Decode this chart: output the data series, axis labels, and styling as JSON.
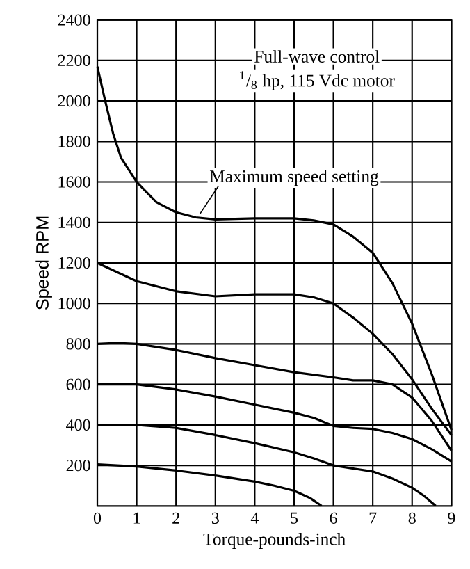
{
  "chart_data": {
    "type": "line",
    "xlabel": "Torque-pounds-inch",
    "ylabel": "Speed RPM",
    "annotations": [
      "Full-wave control",
      "$^{1}$/$_{8}$ hp, 115 Vdc motor",
      {
        "text": "Maximum speed setting",
        "x": 2.6,
        "y": 1440
      }
    ],
    "xlim": [
      0,
      9
    ],
    "ylim": [
      0,
      2400
    ],
    "xticks": [
      0,
      1,
      2,
      3,
      4,
      5,
      6,
      7,
      8,
      9
    ],
    "yticks": [
      200,
      400,
      600,
      800,
      1000,
      1200,
      1400,
      1600,
      1800,
      2000,
      2200,
      2400
    ],
    "grid": true,
    "marker": "none",
    "series": [
      {
        "color": "#000000",
        "x": [
          0,
          0.2,
          0.4,
          0.6,
          1,
          1.5,
          2,
          2.5,
          3,
          4,
          5,
          5.5,
          6,
          6.5,
          7,
          7.5,
          8,
          8.5,
          9
        ],
        "values": [
          2170,
          2000,
          1840,
          1720,
          1600,
          1500,
          1450,
          1425,
          1415,
          1420,
          1420,
          1410,
          1390,
          1330,
          1250,
          1100,
          900,
          650,
          375
        ]
      },
      {
        "color": "#000000",
        "x": [
          0,
          1,
          2,
          3,
          4,
          5,
          5.5,
          6,
          6.5,
          7,
          7.5,
          8,
          8.5,
          9
        ],
        "values": [
          1200,
          1110,
          1060,
          1035,
          1045,
          1045,
          1030,
          1000,
          930,
          850,
          750,
          625,
          480,
          350
        ]
      },
      {
        "color": "#000000",
        "x": [
          0,
          0.5,
          1,
          2,
          3,
          4,
          5,
          6,
          6.5,
          7,
          7.5,
          8,
          8.5,
          9
        ],
        "values": [
          800,
          805,
          800,
          770,
          730,
          695,
          660,
          635,
          620,
          620,
          600,
          535,
          420,
          273
        ]
      },
      {
        "color": "#000000",
        "x": [
          0,
          1,
          2,
          3,
          4,
          5,
          5.5,
          6,
          6.5,
          7,
          7.5,
          8,
          8.5,
          9
        ],
        "values": [
          600,
          600,
          575,
          540,
          500,
          460,
          435,
          395,
          385,
          380,
          360,
          330,
          280,
          220
        ]
      },
      {
        "color": "#000000",
        "x": [
          0,
          1,
          2,
          3,
          4,
          5,
          5.5,
          6,
          7,
          7.5,
          8,
          8.3,
          8.6
        ],
        "values": [
          400,
          400,
          385,
          350,
          310,
          265,
          235,
          200,
          170,
          135,
          90,
          50,
          0
        ]
      },
      {
        "color": "#000000",
        "x": [
          0,
          1,
          2,
          3,
          4,
          4.5,
          5,
          5.4,
          5.7
        ],
        "values": [
          205,
          195,
          175,
          150,
          120,
          100,
          75,
          40,
          0
        ]
      }
    ]
  }
}
